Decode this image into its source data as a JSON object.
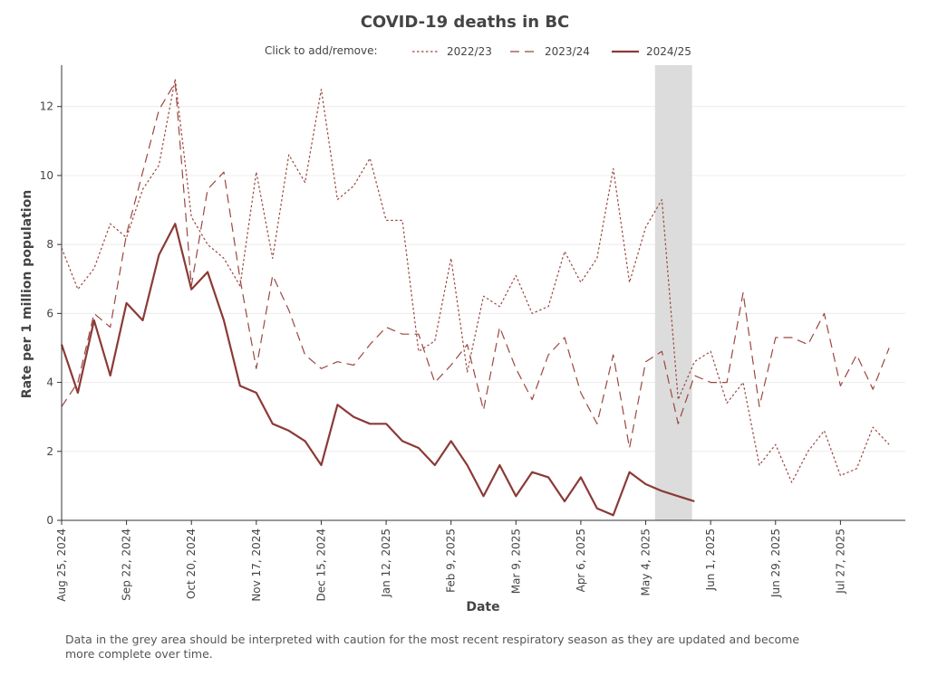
{
  "chart_data": {
    "type": "line",
    "title": "COVID-19 deaths in BC",
    "xlabel": "Date",
    "ylabel": "Rate per 1 million population",
    "legend_hint": "Click to add/remove:",
    "legend_position": "top",
    "grid": true,
    "x_start": "2024-08-25",
    "x_end": "2025-08-24",
    "ylim": [
      0,
      13.2
    ],
    "y_ticks": [
      0,
      2,
      4,
      6,
      8,
      10,
      12
    ],
    "x_ticks": [
      {
        "date": "2024-08-25",
        "label": "Aug 25, 2024"
      },
      {
        "date": "2024-09-22",
        "label": "Sep 22, 2024"
      },
      {
        "date": "2024-10-20",
        "label": "Oct 20, 2024"
      },
      {
        "date": "2024-11-17",
        "label": "Nov 17, 2024"
      },
      {
        "date": "2024-12-15",
        "label": "Dec 15, 2024"
      },
      {
        "date": "2025-01-12",
        "label": "Jan 12, 2025"
      },
      {
        "date": "2025-02-09",
        "label": "Feb 9, 2025"
      },
      {
        "date": "2025-03-09",
        "label": "Mar 9, 2025"
      },
      {
        "date": "2025-04-06",
        "label": "Apr 6, 2025"
      },
      {
        "date": "2025-05-04",
        "label": "May 4, 2025"
      },
      {
        "date": "2025-06-01",
        "label": "Jun 1, 2025"
      },
      {
        "date": "2025-06-29",
        "label": "Jun 29, 2025"
      },
      {
        "date": "2025-07-27",
        "label": "Jul 27, 2025"
      }
    ],
    "shaded_region": {
      "start": "2025-05-08",
      "end": "2025-05-24",
      "color": "#dcdcdc"
    },
    "series": [
      {
        "name": "2022/23",
        "style": "dotted",
        "color": "#9b4740",
        "x": [
          "2024-08-25",
          "2024-09-01",
          "2024-09-08",
          "2024-09-15",
          "2024-09-22",
          "2024-09-29",
          "2024-10-06",
          "2024-10-13",
          "2024-10-20",
          "2024-10-27",
          "2024-11-03",
          "2024-11-10",
          "2024-11-17",
          "2024-11-24",
          "2024-12-01",
          "2024-12-08",
          "2024-12-15",
          "2024-12-22",
          "2024-12-29",
          "2025-01-05",
          "2025-01-12",
          "2025-01-19",
          "2025-01-26",
          "2025-02-02",
          "2025-02-09",
          "2025-02-16",
          "2025-02-23",
          "2025-03-02",
          "2025-03-09",
          "2025-03-16",
          "2025-03-23",
          "2025-03-30",
          "2025-04-06",
          "2025-04-13",
          "2025-04-20",
          "2025-04-27",
          "2025-05-04",
          "2025-05-11",
          "2025-05-18",
          "2025-05-25",
          "2025-06-01",
          "2025-06-08",
          "2025-06-15",
          "2025-06-22",
          "2025-06-29",
          "2025-07-06",
          "2025-07-13",
          "2025-07-20",
          "2025-07-27",
          "2025-08-03",
          "2025-08-10",
          "2025-08-17",
          "2025-08-24"
        ],
        "values": [
          7.9,
          6.7,
          7.3,
          8.6,
          8.2,
          9.6,
          10.3,
          12.8,
          8.8,
          8.0,
          7.6,
          6.8,
          10.1,
          7.6,
          10.6,
          9.8,
          12.5,
          9.3,
          9.7,
          10.5,
          8.7,
          8.7,
          4.9,
          5.2,
          7.6,
          4.3,
          6.5,
          6.2,
          7.1,
          6.0,
          6.2,
          7.8,
          6.9,
          7.6,
          10.2,
          6.9,
          8.5,
          9.3,
          3.5,
          4.6,
          4.9,
          3.4,
          4.0,
          1.6,
          2.2,
          1.1,
          2.0,
          2.6,
          1.3,
          1.5,
          2.7,
          2.2,
          null
        ]
      },
      {
        "name": "2023/24",
        "style": "dashed",
        "color": "#9b4740",
        "x": [
          "2024-08-25",
          "2024-09-01",
          "2024-09-08",
          "2024-09-15",
          "2024-09-22",
          "2024-09-29",
          "2024-10-06",
          "2024-10-13",
          "2024-10-20",
          "2024-10-27",
          "2024-11-03",
          "2024-11-10",
          "2024-11-17",
          "2024-11-24",
          "2024-12-01",
          "2024-12-08",
          "2024-12-15",
          "2024-12-22",
          "2024-12-29",
          "2025-01-05",
          "2025-01-12",
          "2025-01-19",
          "2025-01-26",
          "2025-02-02",
          "2025-02-09",
          "2025-02-16",
          "2025-02-23",
          "2025-03-02",
          "2025-03-09",
          "2025-03-16",
          "2025-03-23",
          "2025-03-30",
          "2025-04-06",
          "2025-04-13",
          "2025-04-20",
          "2025-04-27",
          "2025-05-04",
          "2025-05-11",
          "2025-05-18",
          "2025-05-25",
          "2025-06-01",
          "2025-06-08",
          "2025-06-15",
          "2025-06-22",
          "2025-06-29",
          "2025-07-06",
          "2025-07-13",
          "2025-07-20",
          "2025-07-27",
          "2025-08-03",
          "2025-08-10",
          "2025-08-17",
          "2025-08-24"
        ],
        "values": [
          3.3,
          4.0,
          6.0,
          5.6,
          8.3,
          10.1,
          11.9,
          12.7,
          6.8,
          9.6,
          10.1,
          7.0,
          4.4,
          7.1,
          6.1,
          4.8,
          4.4,
          4.6,
          4.5,
          5.1,
          5.6,
          5.4,
          5.4,
          4.0,
          4.5,
          5.1,
          3.2,
          5.6,
          4.4,
          3.5,
          4.8,
          5.3,
          3.7,
          2.8,
          4.8,
          2.1,
          4.6,
          4.9,
          2.8,
          4.2,
          4.0,
          4.0,
          6.6,
          3.3,
          5.3,
          5.3,
          5.1,
          6.0,
          3.9,
          4.8,
          3.8,
          5.0,
          null
        ]
      },
      {
        "name": "2024/25",
        "style": "solid",
        "color": "#8b3a36",
        "x": [
          "2024-08-25",
          "2024-09-01",
          "2024-09-08",
          "2024-09-15",
          "2024-09-22",
          "2024-09-29",
          "2024-10-06",
          "2024-10-13",
          "2024-10-20",
          "2024-10-27",
          "2024-11-03",
          "2024-11-10",
          "2024-11-17",
          "2024-11-24",
          "2024-12-01",
          "2024-12-08",
          "2024-12-15",
          "2024-12-22",
          "2024-12-29",
          "2025-01-05",
          "2025-01-12",
          "2025-01-19",
          "2025-01-26",
          "2025-02-02",
          "2025-02-09",
          "2025-02-16",
          "2025-02-23",
          "2025-03-02",
          "2025-03-09",
          "2025-03-16",
          "2025-03-23",
          "2025-03-30",
          "2025-04-06",
          "2025-04-13",
          "2025-04-20",
          "2025-04-27",
          "2025-05-04",
          "2025-05-11",
          "2025-05-18",
          "2025-05-25"
        ],
        "values": [
          5.1,
          3.7,
          5.8,
          4.2,
          6.3,
          5.8,
          7.7,
          8.6,
          6.7,
          7.2,
          5.8,
          3.9,
          3.7,
          2.8,
          2.6,
          2.3,
          1.6,
          3.35,
          3.0,
          2.8,
          2.8,
          2.3,
          2.1,
          1.6,
          2.3,
          1.6,
          0.7,
          1.6,
          0.7,
          1.4,
          1.25,
          0.55,
          1.25,
          0.35,
          0.15,
          1.4,
          1.05,
          0.85,
          0.7,
          0.55
        ]
      }
    ]
  },
  "note": "Data in the grey area should be interpreted with caution for the most recent respiratory season as they are updated and become more complete over time."
}
